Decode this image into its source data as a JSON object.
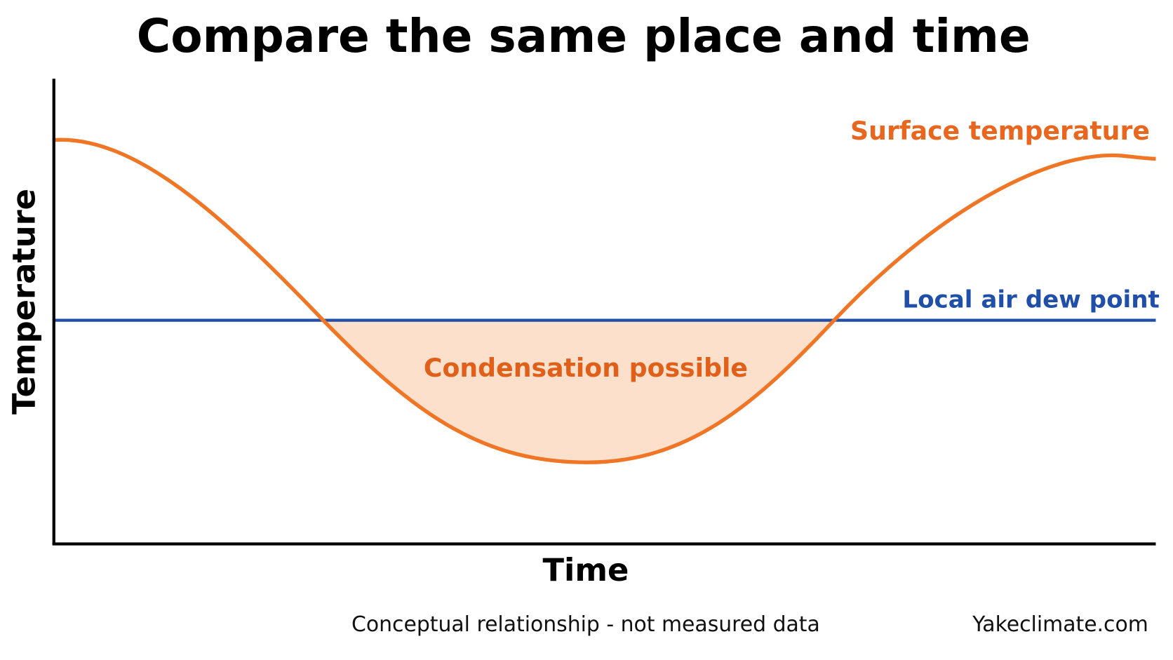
{
  "chart_data": {
    "type": "conceptual-line",
    "title": "Compare the same place and time",
    "y_label": "Temperature",
    "x_label": "Time",
    "series_labels": {
      "surface": "Surface temperature",
      "dew_point": "Local air dew point"
    },
    "region_label": "Condensation possible",
    "footnote": "Conceptual relationship - not measured data",
    "source": "Yakeclimate.com"
  }
}
